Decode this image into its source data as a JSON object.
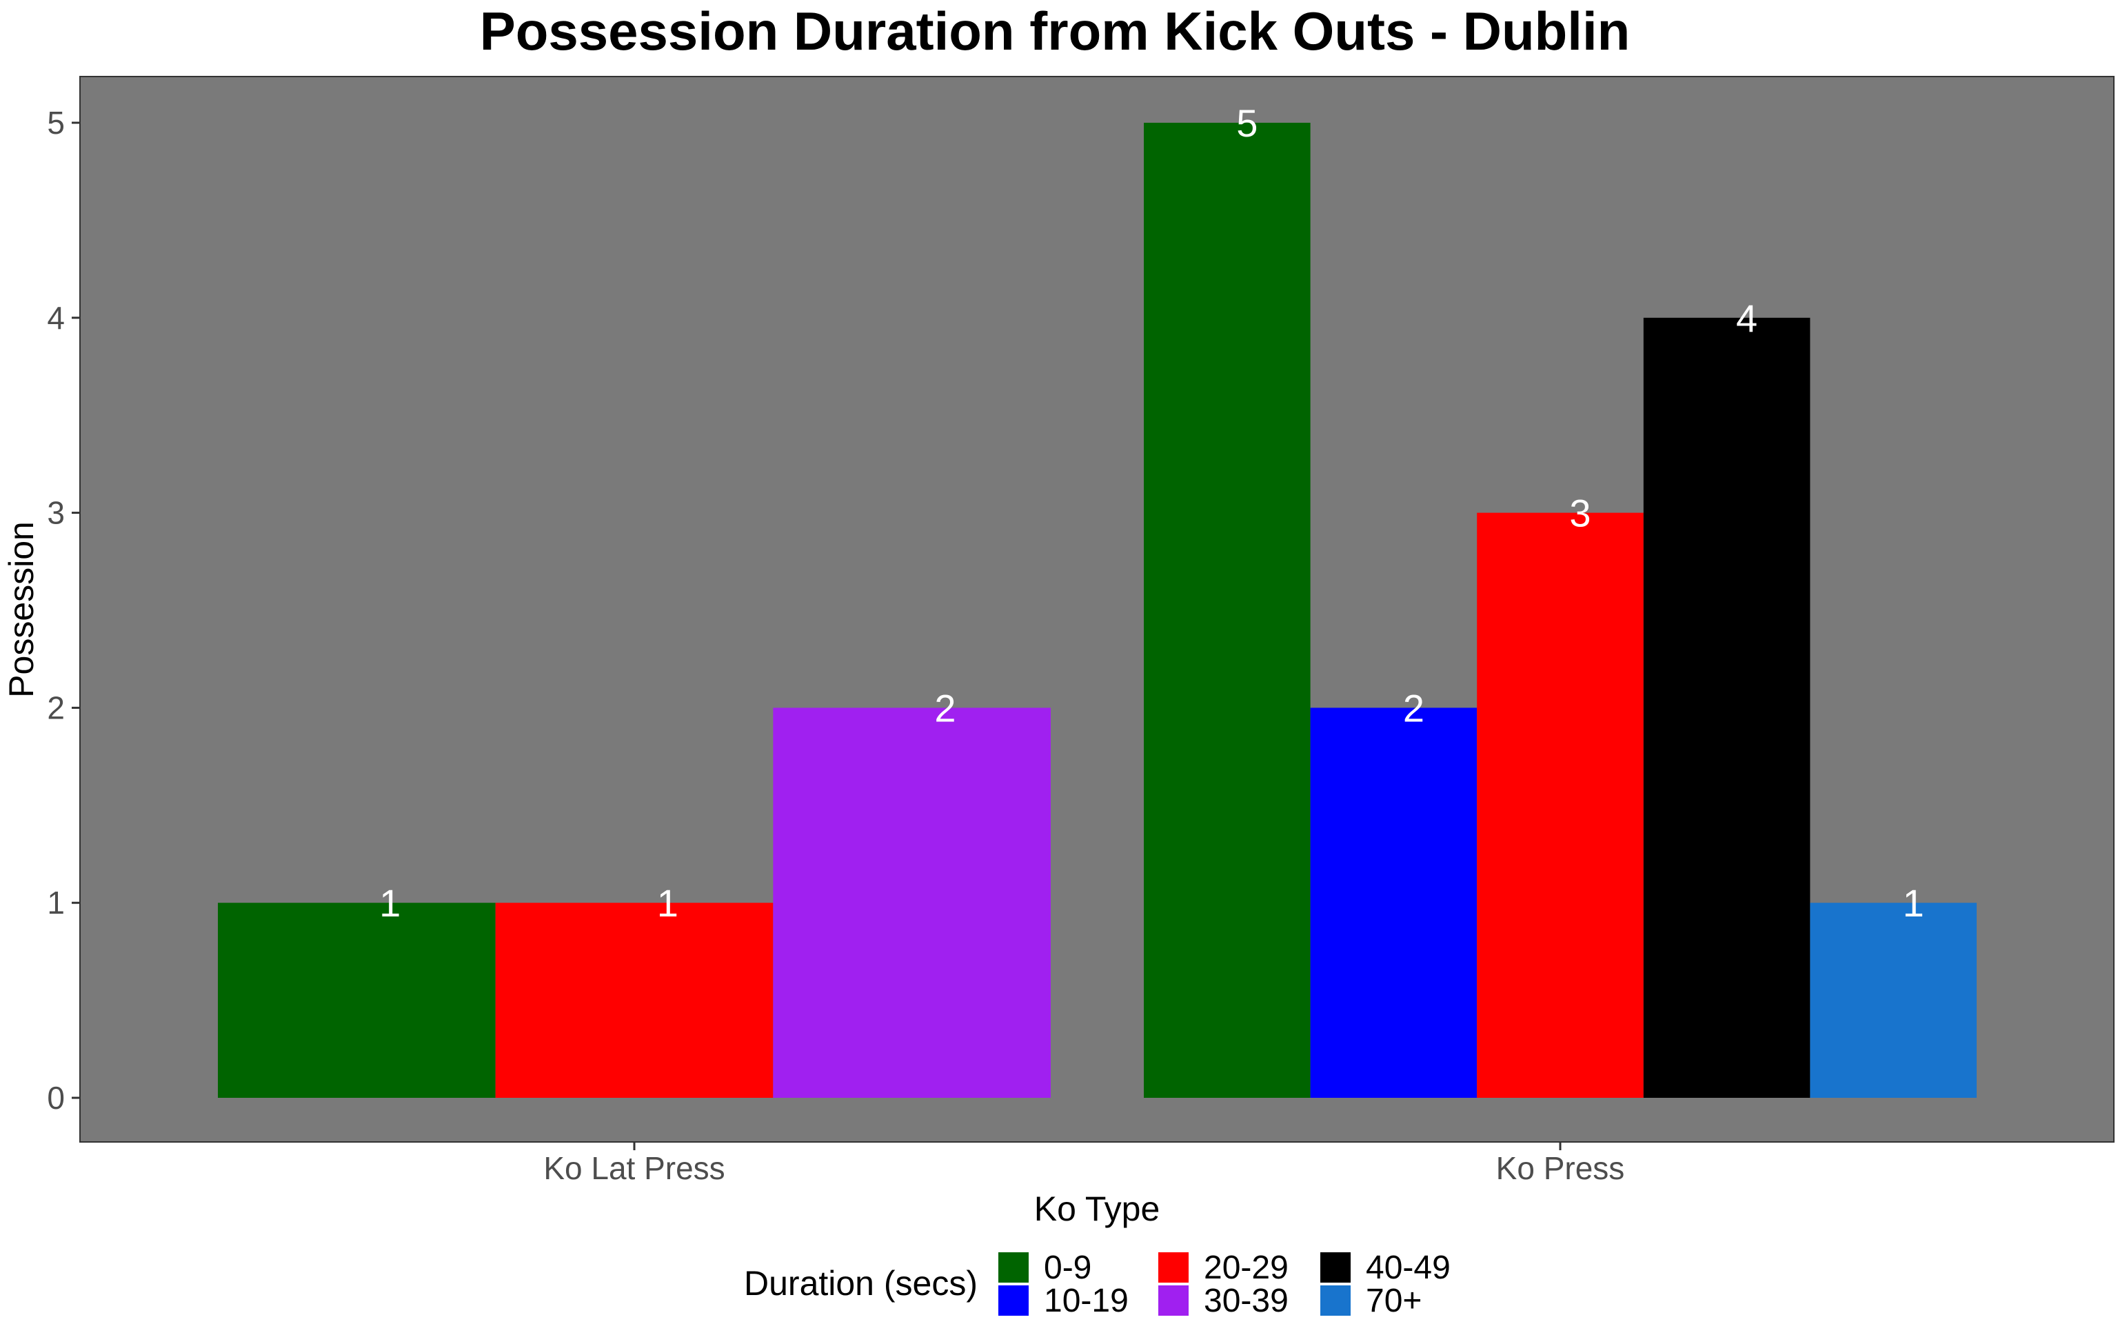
{
  "chart_data": {
    "type": "bar",
    "title": "Possession Duration from Kick Outs - Dublin",
    "xlabel": "Ko Type",
    "ylabel": "Possession",
    "ylim": [
      0,
      5
    ],
    "yticks": [
      0,
      1,
      2,
      3,
      4,
      5
    ],
    "categories": [
      "Ko Lat Press",
      "Ko Press"
    ],
    "legend": {
      "title": "Duration (secs)",
      "placement": "bottom",
      "entries": [
        {
          "name": "0-9",
          "color": "#006400"
        },
        {
          "name": "10-19",
          "color": "#0000FF"
        },
        {
          "name": "20-29",
          "color": "#FF0000"
        },
        {
          "name": "30-39",
          "color": "#A020F0"
        },
        {
          "name": "40-49",
          "color": "#000000"
        },
        {
          "name": "70+",
          "color": "#1874CD"
        }
      ]
    },
    "groups": [
      {
        "category": "Ko Lat Press",
        "bars": [
          {
            "series": "0-9",
            "value": 1
          },
          {
            "series": "20-29",
            "value": 1
          },
          {
            "series": "30-39",
            "value": 2
          }
        ]
      },
      {
        "category": "Ko Press",
        "bars": [
          {
            "series": "0-9",
            "value": 5
          },
          {
            "series": "10-19",
            "value": 2
          },
          {
            "series": "20-29",
            "value": 3
          },
          {
            "series": "40-49",
            "value": 4
          },
          {
            "series": "70+",
            "value": 1
          }
        ]
      }
    ],
    "grid": false,
    "panel_background": "#7A7A7A"
  }
}
